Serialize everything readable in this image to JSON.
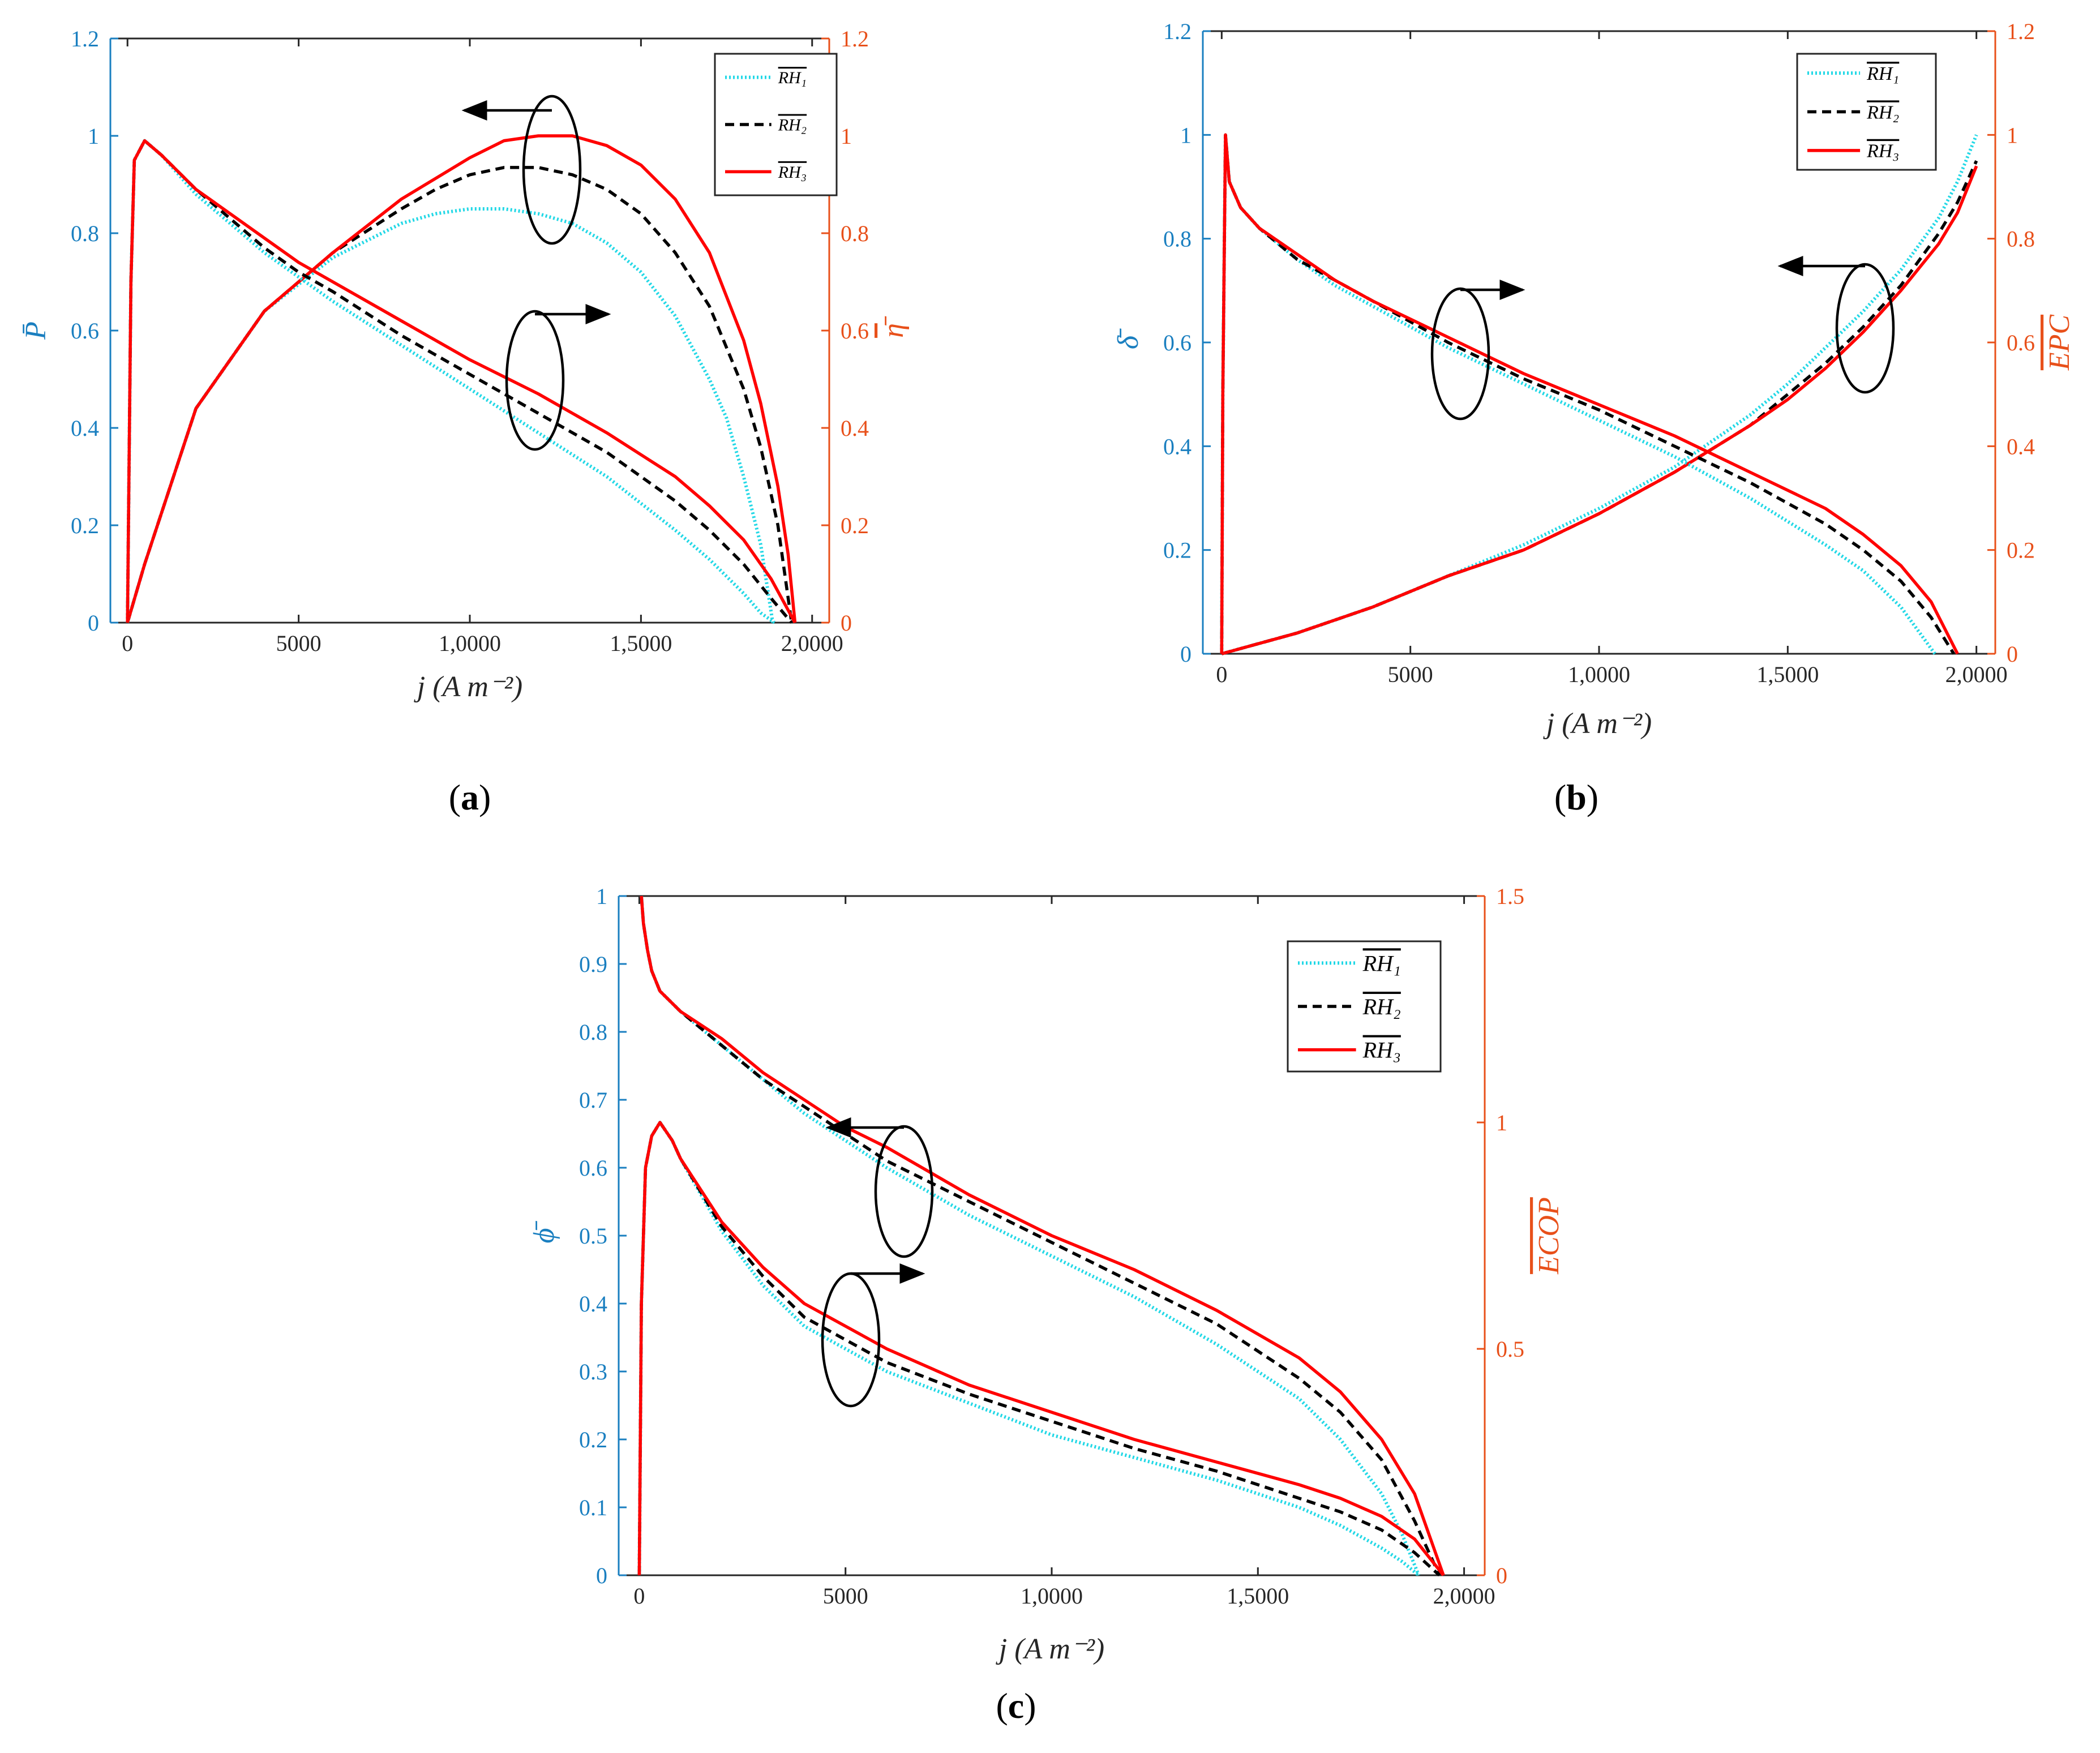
{
  "colors": {
    "left_axis": "#1a7fc0",
    "right_axis": "#e8501a",
    "rh1": "#22d8e6",
    "rh2": "#000000",
    "rh3": "#ff0000",
    "frame": "#262626"
  },
  "chart_data": [
    {
      "id": "a",
      "type": "line",
      "panel_label": "a",
      "xlabel": "j (A m⁻²)",
      "ylabel_left": "P̄",
      "ylabel_right": "η̄",
      "xlim": [
        -500,
        20500
      ],
      "ylim_left": [
        0,
        1.2
      ],
      "ylim_right": [
        0,
        1.2
      ],
      "x_ticks": [
        0,
        5000,
        10000,
        15000,
        20000
      ],
      "x_tick_labels": [
        "0",
        "5000",
        "1,0000",
        "1,5000",
        "2,0000"
      ],
      "y_ticks_left": [
        0,
        0.2,
        0.4,
        0.6,
        0.8,
        1,
        1.2
      ],
      "y_tick_labels_left": [
        "0",
        "0.2",
        "0.4",
        "0.6",
        "0.8",
        "1",
        "1.2"
      ],
      "y_ticks_right": [
        0,
        0.2,
        0.4,
        0.6,
        0.8,
        1,
        1.2
      ],
      "y_tick_labels_right": [
        "0",
        "0.2",
        "0.4",
        "0.6",
        "0.8",
        "1",
        "1.2"
      ],
      "legend": [
        "RH₁",
        "RH₂",
        "RH₃"
      ],
      "legend_position": "top-right",
      "series": [
        {
          "name": "RH1 (P̄, left axis)",
          "style": "rh1",
          "axis": "left",
          "x": [
            0,
            500,
            2000,
            4000,
            6000,
            8000,
            9000,
            10000,
            11000,
            12000,
            13000,
            14000,
            15000,
            16000,
            17000,
            17500,
            18000,
            18500,
            18850
          ],
          "y": [
            0,
            0.12,
            0.44,
            0.64,
            0.75,
            0.82,
            0.84,
            0.85,
            0.85,
            0.84,
            0.82,
            0.78,
            0.72,
            0.63,
            0.5,
            0.42,
            0.3,
            0.16,
            0.0
          ]
        },
        {
          "name": "RH2 (P̄, left axis)",
          "style": "rh2",
          "axis": "left",
          "x": [
            0,
            500,
            2000,
            4000,
            6000,
            8000,
            9000,
            10000,
            11000,
            12000,
            13000,
            14000,
            15000,
            16000,
            17000,
            18000,
            18500,
            19000,
            19400
          ],
          "y": [
            0,
            0.12,
            0.44,
            0.64,
            0.76,
            0.85,
            0.89,
            0.92,
            0.935,
            0.935,
            0.92,
            0.89,
            0.84,
            0.76,
            0.65,
            0.48,
            0.36,
            0.2,
            0.0
          ]
        },
        {
          "name": "RH3 (P̄, left axis)",
          "style": "rh3",
          "axis": "left",
          "x": [
            0,
            500,
            2000,
            4000,
            6000,
            8000,
            10000,
            11000,
            12000,
            13000,
            14000,
            15000,
            16000,
            17000,
            18000,
            18500,
            19000,
            19300,
            19500
          ],
          "y": [
            0,
            0.12,
            0.44,
            0.64,
            0.76,
            0.87,
            0.955,
            0.99,
            1.0,
            1.0,
            0.98,
            0.94,
            0.87,
            0.76,
            0.58,
            0.45,
            0.28,
            0.14,
            0.0
          ]
        },
        {
          "name": "RH1 (η̄, right axis)",
          "style": "rh1",
          "axis": "right",
          "x": [
            0,
            100,
            200,
            500,
            1000,
            2000,
            3000,
            4000,
            5000,
            6000,
            8000,
            10000,
            12000,
            14000,
            16000,
            17000,
            18000,
            18500,
            18900
          ],
          "y": [
            0,
            0.7,
            0.95,
            0.99,
            0.96,
            0.88,
            0.82,
            0.76,
            0.71,
            0.66,
            0.57,
            0.48,
            0.39,
            0.3,
            0.19,
            0.13,
            0.06,
            0.02,
            0.0
          ]
        },
        {
          "name": "RH2 (η̄, right axis)",
          "style": "rh2",
          "axis": "right",
          "x": [
            0,
            100,
            200,
            500,
            1000,
            2000,
            3000,
            4000,
            5000,
            6000,
            8000,
            10000,
            12000,
            14000,
            16000,
            17000,
            18000,
            18800,
            19400
          ],
          "y": [
            0,
            0.7,
            0.95,
            0.99,
            0.96,
            0.89,
            0.83,
            0.77,
            0.72,
            0.68,
            0.59,
            0.51,
            0.43,
            0.35,
            0.25,
            0.19,
            0.12,
            0.05,
            0.0
          ]
        },
        {
          "name": "RH3 (η̄, right axis)",
          "style": "rh3",
          "axis": "right",
          "x": [
            0,
            100,
            200,
            500,
            1000,
            2000,
            3000,
            4000,
            5000,
            6000,
            8000,
            10000,
            12000,
            14000,
            16000,
            17000,
            18000,
            18800,
            19500
          ],
          "y": [
            0,
            0.7,
            0.95,
            0.99,
            0.96,
            0.89,
            0.84,
            0.79,
            0.74,
            0.7,
            0.62,
            0.54,
            0.47,
            0.39,
            0.3,
            0.24,
            0.17,
            0.09,
            0.0
          ]
        }
      ],
      "annotations": [
        {
          "type": "ellipse-arrow",
          "points_to": "left axis",
          "x": 11500,
          "y": 0.93
        },
        {
          "type": "ellipse-arrow",
          "points_to": "right axis",
          "x": 11500,
          "y": 0.5
        }
      ]
    },
    {
      "id": "b",
      "type": "line",
      "panel_label": "b",
      "xlabel": "j (A m⁻²)",
      "ylabel_left": "δ̄",
      "ylabel_right": "EPC",
      "xlim": [
        -500,
        20500
      ],
      "ylim_left": [
        0,
        1.2
      ],
      "ylim_right": [
        0,
        1.2
      ],
      "x_ticks": [
        0,
        5000,
        10000,
        15000,
        20000
      ],
      "x_tick_labels": [
        "0",
        "5000",
        "1,0000",
        "1,5000",
        "2,0000"
      ],
      "y_ticks_left": [
        0,
        0.2,
        0.4,
        0.6,
        0.8,
        1,
        1.2
      ],
      "y_tick_labels_left": [
        "0",
        "0.2",
        "0.4",
        "0.6",
        "0.8",
        "1",
        "1.2"
      ],
      "y_ticks_right": [
        0,
        0.2,
        0.4,
        0.6,
        0.8,
        1,
        1.2
      ],
      "y_tick_labels_right": [
        "0",
        "0.2",
        "0.4",
        "0.6",
        "0.8",
        "1",
        "1.2"
      ],
      "legend": [
        "RH₁",
        "RH₂",
        "RH₃"
      ],
      "legend_position": "top-right",
      "series": [
        {
          "name": "RH1 (δ̄, left axis)",
          "style": "rh1",
          "axis": "left",
          "x": [
            0,
            2000,
            4000,
            6000,
            8000,
            10000,
            12000,
            14000,
            15000,
            16000,
            17000,
            18000,
            19000,
            19500,
            20000
          ],
          "y": [
            0,
            0.04,
            0.09,
            0.15,
            0.21,
            0.28,
            0.36,
            0.46,
            0.52,
            0.59,
            0.66,
            0.74,
            0.84,
            0.91,
            1.0
          ]
        },
        {
          "name": "RH2 (δ̄, left axis)",
          "style": "rh2",
          "axis": "left",
          "x": [
            0,
            2000,
            4000,
            6000,
            8000,
            10000,
            12000,
            14000,
            15000,
            16000,
            17000,
            18000,
            19000,
            19500,
            20000
          ],
          "y": [
            0,
            0.04,
            0.09,
            0.15,
            0.2,
            0.27,
            0.35,
            0.44,
            0.5,
            0.56,
            0.63,
            0.71,
            0.81,
            0.87,
            0.95
          ]
        },
        {
          "name": "RH3 (δ̄, left axis)",
          "style": "rh3",
          "axis": "left",
          "x": [
            0,
            2000,
            4000,
            6000,
            8000,
            10000,
            12000,
            14000,
            15000,
            16000,
            17000,
            18000,
            19000,
            19500,
            20000
          ],
          "y": [
            0,
            0.04,
            0.09,
            0.15,
            0.2,
            0.27,
            0.35,
            0.44,
            0.49,
            0.55,
            0.62,
            0.7,
            0.79,
            0.85,
            0.94
          ]
        },
        {
          "name": "RH1 (EPC, right axis)",
          "style": "rh1",
          "axis": "right",
          "x": [
            0,
            30,
            100,
            200,
            500,
            1000,
            2000,
            3000,
            4000,
            6000,
            8000,
            10000,
            12000,
            14000,
            16000,
            17000,
            18000,
            18500,
            18900
          ],
          "y": [
            0,
            0.5,
            1.0,
            0.91,
            0.86,
            0.82,
            0.76,
            0.71,
            0.67,
            0.59,
            0.52,
            0.45,
            0.38,
            0.3,
            0.21,
            0.16,
            0.09,
            0.04,
            0.0
          ]
        },
        {
          "name": "RH2 (EPC, right axis)",
          "style": "rh2",
          "axis": "right",
          "x": [
            0,
            30,
            100,
            200,
            500,
            1000,
            2000,
            3000,
            4000,
            6000,
            8000,
            10000,
            12000,
            14000,
            16000,
            17000,
            18000,
            18800,
            19400
          ],
          "y": [
            0,
            0.5,
            1.0,
            0.91,
            0.86,
            0.82,
            0.76,
            0.72,
            0.68,
            0.6,
            0.53,
            0.47,
            0.4,
            0.33,
            0.25,
            0.2,
            0.14,
            0.07,
            0.0
          ]
        },
        {
          "name": "RH3 (EPC, right axis)",
          "style": "rh3",
          "axis": "right",
          "x": [
            0,
            30,
            100,
            200,
            500,
            1000,
            2000,
            3000,
            4000,
            6000,
            8000,
            10000,
            12000,
            14000,
            16000,
            17000,
            18000,
            18800,
            19500
          ],
          "y": [
            0,
            0.5,
            1.0,
            0.91,
            0.86,
            0.82,
            0.77,
            0.72,
            0.68,
            0.61,
            0.54,
            0.48,
            0.42,
            0.35,
            0.28,
            0.23,
            0.17,
            0.1,
            0.0
          ]
        }
      ],
      "annotations": [
        {
          "type": "ellipse-arrow",
          "points_to": "right axis",
          "x": 6000,
          "y": 0.6
        },
        {
          "type": "ellipse-arrow",
          "points_to": "left axis",
          "x": 16000,
          "y": 0.63
        }
      ]
    },
    {
      "id": "c",
      "type": "line",
      "panel_label": "c",
      "xlabel": "j (A m⁻²)",
      "ylabel_left": "ϕ̄",
      "ylabel_right": "ECOP",
      "xlim": [
        -500,
        20500
      ],
      "ylim_left": [
        0,
        1
      ],
      "ylim_right": [
        0,
        1.5
      ],
      "x_ticks": [
        0,
        5000,
        10000,
        15000,
        20000
      ],
      "x_tick_labels": [
        "0",
        "5000",
        "1,0000",
        "1,5000",
        "2,0000"
      ],
      "y_ticks_left": [
        0,
        0.1,
        0.2,
        0.3,
        0.4,
        0.5,
        0.6,
        0.7,
        0.8,
        0.9,
        1
      ],
      "y_tick_labels_left": [
        "0",
        "0.1",
        "0.2",
        "0.3",
        "0.4",
        "0.5",
        "0.6",
        "0.7",
        "0.8",
        "0.9",
        "1"
      ],
      "y_ticks_right": [
        0,
        0.5,
        1,
        1.5
      ],
      "y_tick_labels_right": [
        "0",
        "0.5",
        "1",
        "1.5"
      ],
      "legend": [
        "RH₁",
        "RH₂",
        "RH₃"
      ],
      "legend_position": "top-right",
      "series": [
        {
          "name": "RH1 (ϕ̄, left axis)",
          "style": "rh1",
          "axis": "left",
          "x": [
            50,
            100,
            200,
            300,
            500,
            1000,
            2000,
            3000,
            4000,
            5000,
            6000,
            8000,
            10000,
            12000,
            14000,
            16000,
            17000,
            18000,
            18500,
            18900
          ],
          "y": [
            1.0,
            0.96,
            0.92,
            0.89,
            0.86,
            0.83,
            0.78,
            0.73,
            0.68,
            0.64,
            0.6,
            0.53,
            0.47,
            0.41,
            0.34,
            0.26,
            0.2,
            0.12,
            0.06,
            0.0
          ]
        },
        {
          "name": "RH2 (ϕ̄, left axis)",
          "style": "rh2",
          "axis": "left",
          "x": [
            50,
            100,
            200,
            300,
            500,
            1000,
            2000,
            3000,
            4000,
            5000,
            6000,
            8000,
            10000,
            12000,
            14000,
            16000,
            17000,
            18000,
            18800,
            19400
          ],
          "y": [
            1.0,
            0.96,
            0.92,
            0.89,
            0.86,
            0.83,
            0.78,
            0.73,
            0.69,
            0.65,
            0.61,
            0.55,
            0.49,
            0.43,
            0.37,
            0.29,
            0.24,
            0.17,
            0.08,
            0.0
          ]
        },
        {
          "name": "RH3 (ϕ̄, left axis)",
          "style": "rh3",
          "axis": "left",
          "x": [
            50,
            100,
            200,
            300,
            500,
            1000,
            2000,
            3000,
            4000,
            5000,
            6000,
            8000,
            10000,
            12000,
            14000,
            16000,
            17000,
            18000,
            18800,
            19500
          ],
          "y": [
            1.0,
            0.96,
            0.92,
            0.89,
            0.86,
            0.83,
            0.79,
            0.74,
            0.7,
            0.66,
            0.63,
            0.56,
            0.5,
            0.45,
            0.39,
            0.32,
            0.27,
            0.2,
            0.12,
            0.0
          ]
        },
        {
          "name": "RH1 (ECOP, right axis)",
          "style": "rh1",
          "axis": "right",
          "x": [
            0,
            50,
            150,
            300,
            500,
            800,
            1000,
            2000,
            3000,
            4000,
            6000,
            8000,
            10000,
            12000,
            14000,
            16000,
            17000,
            18000,
            18500,
            18900
          ],
          "y": [
            0,
            0.6,
            0.9,
            0.97,
            1.0,
            0.96,
            0.92,
            0.76,
            0.64,
            0.55,
            0.45,
            0.38,
            0.31,
            0.26,
            0.21,
            0.15,
            0.11,
            0.06,
            0.03,
            0.0
          ]
        },
        {
          "name": "RH2 (ECOP, right axis)",
          "style": "rh2",
          "axis": "right",
          "x": [
            0,
            50,
            150,
            300,
            500,
            800,
            1000,
            2000,
            3000,
            4000,
            6000,
            8000,
            10000,
            12000,
            14000,
            16000,
            17000,
            18000,
            18800,
            19400
          ],
          "y": [
            0,
            0.6,
            0.9,
            0.97,
            1.0,
            0.96,
            0.92,
            0.77,
            0.66,
            0.57,
            0.47,
            0.4,
            0.34,
            0.28,
            0.23,
            0.17,
            0.14,
            0.1,
            0.05,
            0.0
          ]
        },
        {
          "name": "RH3 (ECOP, right axis)",
          "style": "rh3",
          "axis": "right",
          "x": [
            0,
            50,
            150,
            300,
            500,
            800,
            1000,
            2000,
            3000,
            4000,
            6000,
            8000,
            10000,
            12000,
            14000,
            16000,
            17000,
            18000,
            18800,
            19500
          ],
          "y": [
            0,
            0.6,
            0.9,
            0.97,
            1.0,
            0.96,
            0.92,
            0.78,
            0.68,
            0.6,
            0.5,
            0.42,
            0.36,
            0.3,
            0.25,
            0.2,
            0.17,
            0.13,
            0.08,
            0.0
          ]
        }
      ],
      "annotations": [
        {
          "type": "ellipse-arrow",
          "points_to": "left axis",
          "x": 6800,
          "y": 0.57
        },
        {
          "type": "ellipse-arrow",
          "points_to": "right axis",
          "x": 5400,
          "y": 0.36
        }
      ]
    }
  ]
}
